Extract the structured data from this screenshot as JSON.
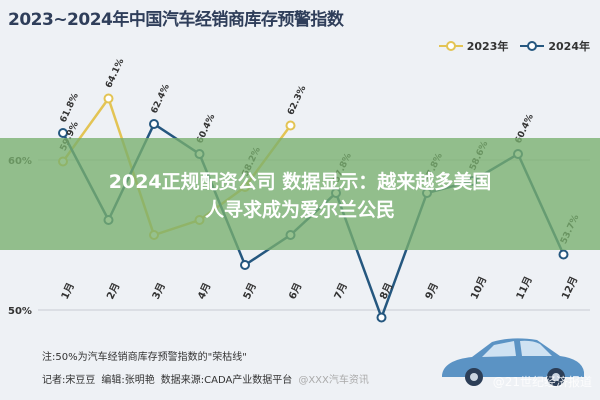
{
  "header": {
    "title": "2023~2024年中国汽车经销商库存预警指数"
  },
  "chart_data": {
    "type": "line",
    "title": "2023~2024年中国汽车经销商库存预警指数",
    "categories": [
      "1月",
      "2月",
      "3月",
      "4月",
      "5月",
      "6月",
      "7月",
      "8月",
      "9月",
      "10月",
      "11月",
      "12月"
    ],
    "series": [
      {
        "name": "2023年",
        "color": "#e3c454",
        "values": [
          59.9,
          64.1,
          55.0,
          56.0,
          58.2,
          62.3,
          null,
          null,
          null,
          null,
          null,
          null
        ],
        "labels": [
          "59.9%",
          "64.1%",
          "",
          "",
          "58.2%",
          "62.3%",
          "",
          "",
          "",
          "",
          "",
          ""
        ]
      },
      {
        "name": "2024年",
        "color": "#25577f",
        "values": [
          61.8,
          56.0,
          62.4,
          60.4,
          53.0,
          55.0,
          57.8,
          49.5,
          57.8,
          58.6,
          60.4,
          53.7
        ],
        "labels": [
          "61.8%",
          "",
          "62.4%",
          "60.4%",
          "",
          "",
          "57.8%",
          "",
          "57.8%",
          "58.6%",
          "60.4%",
          "53.7%"
        ]
      }
    ],
    "yticks": [
      "60%",
      "50%"
    ],
    "ylim": [
      48,
      68
    ],
    "grid": true,
    "legend": "top-right"
  },
  "overlay": {
    "line1": "2024正规配资公司   数据显示：越来越多美国",
    "line2": "人寻求成为爱尔兰公民"
  },
  "footer": {
    "note": "注:50%为汽车经销商库存预警指数的\"荣枯线\"",
    "author": "记者:宋豆豆",
    "editor": "编辑:张明艳",
    "source": "数据来源:CADA产业数据平台",
    "watermark1": "@XXX汽车资讯",
    "watermark2": "@21世纪经济报道"
  },
  "colors": {
    "y2023": "#e3c454",
    "y2024": "#25577f",
    "overlay": "#78af6e",
    "background": "#eef1f5"
  }
}
